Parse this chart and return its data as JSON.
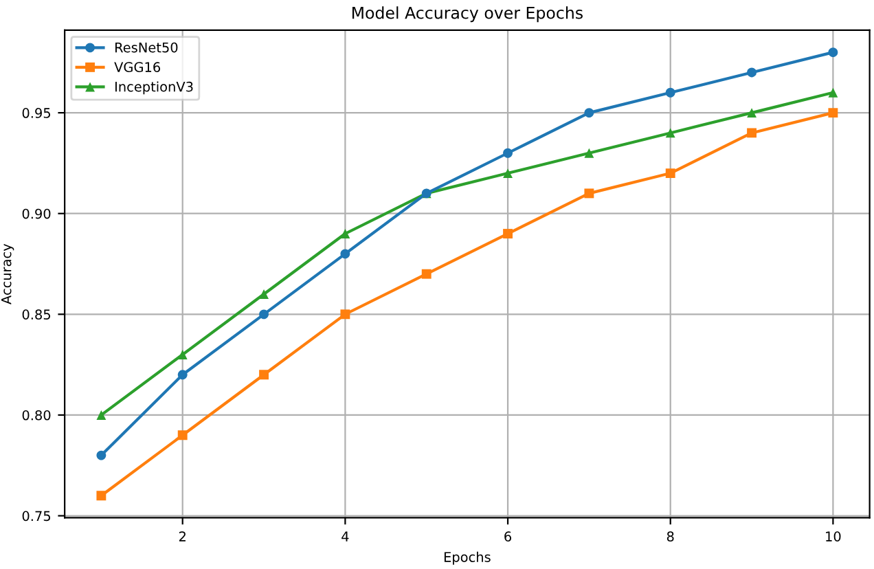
{
  "chart_data": {
    "type": "line",
    "title": "Model Accuracy over Epochs",
    "xlabel": "Epochs",
    "ylabel": "Accuracy",
    "x": [
      1,
      2,
      3,
      4,
      5,
      6,
      7,
      8,
      9,
      10
    ],
    "series": [
      {
        "name": "ResNet50",
        "color": "#1f77b4",
        "marker": "circle",
        "values": [
          0.78,
          0.82,
          0.85,
          0.88,
          0.91,
          0.93,
          0.95,
          0.96,
          0.97,
          0.98
        ]
      },
      {
        "name": "VGG16",
        "color": "#ff7f0e",
        "marker": "square",
        "values": [
          0.76,
          0.79,
          0.82,
          0.85,
          0.87,
          0.89,
          0.91,
          0.92,
          0.94,
          0.95
        ]
      },
      {
        "name": "InceptionV3",
        "color": "#2ca02c",
        "marker": "triangle",
        "values": [
          0.8,
          0.83,
          0.86,
          0.89,
          0.91,
          0.92,
          0.93,
          0.94,
          0.95,
          0.96
        ]
      }
    ],
    "xlim": [
      0.55,
      10.45
    ],
    "ylim": [
      0.749,
      0.991
    ],
    "xticks": [
      2,
      4,
      6,
      8,
      10
    ],
    "yticks": [
      0.75,
      {
        "value": 0.8,
        "label": "0.80"
      },
      0.85,
      {
        "value": 0.9,
        "label": "0.90"
      },
      0.95
    ],
    "grid": true,
    "legend": "top left",
    "line_style": "solid"
  }
}
